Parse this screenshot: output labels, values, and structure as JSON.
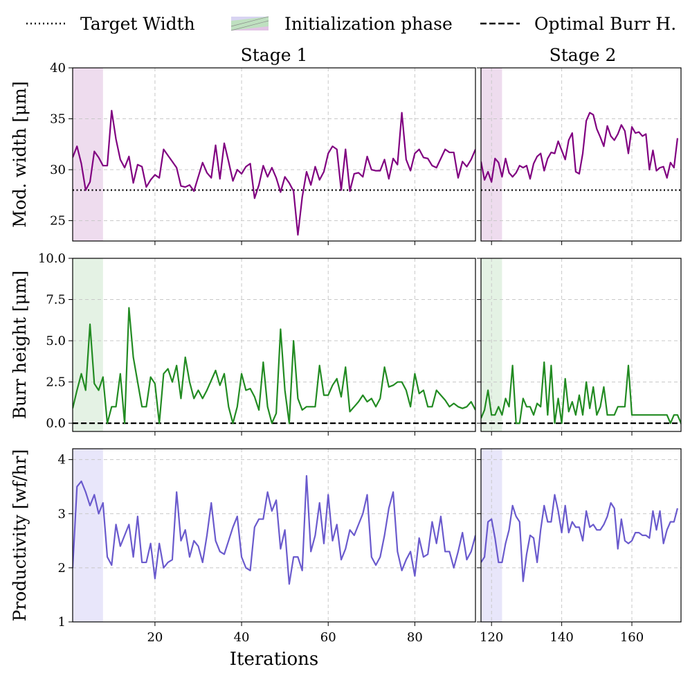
{
  "legend": {
    "target_width": "Target Width",
    "init_phase": "Initialization phase",
    "optimal_burr": "Optimal Burr H."
  },
  "colors": {
    "width": "#800080",
    "burr": "#228b22",
    "productivity": "#6a5acd",
    "init_width": "#eedcee",
    "init_burr": "#e4f2e4",
    "init_prod": "#e8e6fa",
    "grid": "#c8c8c8"
  },
  "chart_data": [
    {
      "type": "line",
      "panel": "width",
      "ylabel": "Mod. width [μm]",
      "ylim": [
        23,
        40
      ],
      "yticks": [
        25,
        30,
        35,
        40
      ],
      "reference_line": {
        "label": "Target Width",
        "y": 28,
        "style": "dotted"
      },
      "stage1": {
        "title": "Stage 1",
        "xlim": [
          1,
          94
        ],
        "xticks": [
          20,
          40,
          60,
          80
        ],
        "init_phase": [
          1,
          8
        ],
        "x_start": 1,
        "values": [
          31.2,
          32.3,
          30.6,
          28.0,
          28.8,
          31.8,
          31.2,
          30.4,
          30.4,
          35.8,
          33.0,
          31.0,
          30.2,
          31.3,
          28.7,
          30.5,
          30.3,
          28.3,
          29.0,
          29.5,
          29.2,
          32.0,
          31.4,
          30.8,
          30.2,
          28.4,
          28.3,
          28.5,
          27.9,
          29.3,
          30.7,
          29.7,
          29.2,
          32.4,
          29.1,
          32.6,
          30.8,
          28.9,
          30.0,
          29.6,
          30.3,
          30.6,
          27.2,
          28.5,
          30.4,
          29.3,
          30.2,
          29.2,
          27.8,
          29.3,
          28.7,
          27.9,
          23.6,
          27.3,
          29.8,
          28.5,
          30.3,
          29.0,
          29.8,
          31.6,
          32.3,
          32.0,
          28.0,
          32.0,
          27.9,
          29.6,
          29.7,
          29.3,
          31.3,
          30.0,
          29.9,
          29.9,
          31.0,
          29.1,
          31.1,
          30.5,
          35.6,
          31.0,
          29.9,
          31.6,
          32.0,
          31.2,
          31.1,
          30.4,
          30.2,
          31.1,
          32.0,
          31.7,
          31.7,
          29.2,
          30.8,
          30.3,
          31.0,
          32.0
        ]
      },
      "stage2": {
        "title": "Stage 2",
        "xlim": [
          117,
          174
        ],
        "xticks": [
          120,
          140,
          160
        ],
        "init_phase": [
          117,
          123
        ],
        "x_start": 117,
        "values": [
          30.8,
          29.0,
          29.8,
          28.8,
          31.1,
          30.7,
          29.3,
          31.1,
          29.7,
          29.3,
          29.7,
          30.4,
          30.2,
          30.4,
          29.1,
          30.6,
          31.3,
          31.6,
          29.9,
          31.1,
          31.7,
          31.6,
          32.8,
          31.9,
          31.0,
          32.9,
          33.6,
          29.8,
          29.6,
          31.6,
          34.8,
          35.6,
          35.4,
          34.0,
          33.2,
          32.3,
          34.3,
          33.3,
          32.9,
          33.5,
          34.4,
          33.8,
          31.6,
          34.2,
          33.6,
          33.7,
          33.3,
          33.5,
          30.0,
          31.9,
          29.9,
          30.2,
          30.3,
          29.2,
          30.7,
          30.2,
          33.1
        ]
      }
    },
    {
      "type": "line",
      "panel": "burr",
      "ylabel": "Burr height [μm]",
      "ylim": [
        -0.5,
        10
      ],
      "yticks": [
        0.0,
        2.5,
        5.0,
        7.5,
        10.0
      ],
      "ytick_labels": [
        "0.0",
        "2.5",
        "5.0",
        "7.5",
        "10.0"
      ],
      "reference_line": {
        "label": "Optimal Burr H.",
        "y": 0,
        "style": "dashed"
      },
      "stage1": {
        "title": "",
        "xlim": [
          1,
          94
        ],
        "xticks": [
          20,
          40,
          60,
          80
        ],
        "init_phase": [
          1,
          8
        ],
        "x_start": 1,
        "values": [
          0.9,
          2.0,
          3.0,
          2.0,
          6.0,
          2.4,
          2.0,
          2.8,
          0.0,
          1.0,
          1.0,
          3.0,
          0.0,
          7.0,
          4.0,
          2.5,
          1.0,
          1.0,
          2.8,
          2.4,
          0.0,
          3.0,
          3.3,
          2.5,
          3.5,
          1.5,
          4.0,
          2.5,
          1.5,
          2.0,
          1.5,
          2.0,
          2.6,
          3.2,
          2.3,
          3.0,
          1.0,
          0.0,
          1.0,
          3.0,
          2.0,
          2.1,
          1.6,
          0.8,
          3.7,
          1.0,
          0.0,
          0.6,
          5.7,
          2.0,
          0.0,
          5.0,
          1.5,
          0.8,
          1.0,
          1.0,
          1.0,
          3.5,
          1.7,
          1.7,
          2.3,
          2.7,
          1.6,
          3.4,
          0.7,
          1.0,
          1.3,
          1.7,
          1.3,
          1.5,
          1.0,
          1.5,
          3.4,
          2.2,
          2.3,
          2.5,
          2.5,
          2.0,
          1.0,
          3.0,
          1.8,
          2.0,
          1.0,
          1.0,
          2.0,
          1.7,
          1.4,
          1.0,
          1.2,
          1.0,
          0.9,
          1.0,
          1.3,
          0.8
        ]
      },
      "stage2": {
        "title": "",
        "xlim": [
          117,
          174
        ],
        "xticks": [
          120,
          140,
          160
        ],
        "init_phase": [
          117,
          123
        ],
        "x_start": 117,
        "values": [
          0.3,
          0.8,
          2.0,
          0.5,
          0.5,
          1.0,
          0.5,
          1.5,
          1.0,
          3.5,
          0.0,
          0.0,
          1.5,
          1.0,
          1.0,
          0.5,
          1.2,
          1.0,
          3.7,
          0.5,
          3.5,
          0.0,
          1.5,
          0.0,
          2.7,
          0.7,
          1.3,
          0.5,
          1.7,
          0.5,
          2.5,
          0.9,
          2.2,
          0.5,
          1.0,
          2.2,
          0.5,
          0.5,
          0.5,
          1.0,
          1.0,
          1.0,
          3.5,
          0.5,
          0.5,
          0.5,
          0.5,
          0.5,
          0.5,
          0.5,
          0.5,
          0.5,
          0.5,
          0.5,
          0.0,
          0.5,
          0.5,
          0.0
        ]
      }
    },
    {
      "type": "line",
      "panel": "productivity",
      "ylabel": "Productivity [wf/hr]",
      "ylim": [
        1,
        4.2
      ],
      "yticks": [
        1,
        2,
        3,
        4
      ],
      "stage1": {
        "title": "",
        "xlabel": "Iterations",
        "xlim": [
          1,
          94
        ],
        "xticks": [
          20,
          40,
          60,
          80
        ],
        "init_phase": [
          1,
          8
        ],
        "x_start": 1,
        "values": [
          2.0,
          3.5,
          3.6,
          3.4,
          3.15,
          3.35,
          3.0,
          3.2,
          2.2,
          2.05,
          2.8,
          2.4,
          2.6,
          2.8,
          2.2,
          2.95,
          2.1,
          2.1,
          2.45,
          1.8,
          2.45,
          2.0,
          2.1,
          2.15,
          3.4,
          2.5,
          2.7,
          2.2,
          2.5,
          2.4,
          2.1,
          2.6,
          3.2,
          2.5,
          2.3,
          2.25,
          2.5,
          2.75,
          2.95,
          2.2,
          2.0,
          1.95,
          2.75,
          2.9,
          2.9,
          3.4,
          3.05,
          3.25,
          2.35,
          2.7,
          1.7,
          2.2,
          2.2,
          1.95,
          3.7,
          2.3,
          2.6,
          3.2,
          2.45,
          3.35,
          2.5,
          2.8,
          2.15,
          2.35,
          2.7,
          2.6,
          2.8,
          3.0,
          3.35,
          2.2,
          2.05,
          2.2,
          2.6,
          3.1,
          3.4,
          2.3,
          1.95,
          2.15,
          2.3,
          1.85,
          2.55,
          2.2,
          2.25,
          2.85,
          2.45,
          2.95,
          2.3,
          2.3,
          2.0,
          2.3,
          2.65,
          2.15,
          2.3,
          2.6
        ]
      },
      "stage2": {
        "title": "",
        "xlim": [
          117,
          174
        ],
        "xticks": [
          120,
          140,
          160
        ],
        "init_phase": [
          117,
          123
        ],
        "x_start": 117,
        "values": [
          2.1,
          2.2,
          2.85,
          2.9,
          2.55,
          2.1,
          2.1,
          2.45,
          2.7,
          3.15,
          2.95,
          2.85,
          1.75,
          2.25,
          2.6,
          2.55,
          2.1,
          2.7,
          3.15,
          2.85,
          2.85,
          3.35,
          3.05,
          2.65,
          3.15,
          2.65,
          2.85,
          2.75,
          2.75,
          2.5,
          3.05,
          2.75,
          2.8,
          2.7,
          2.7,
          2.8,
          2.95,
          3.2,
          3.1,
          2.35,
          2.9,
          2.5,
          2.45,
          2.5,
          2.65,
          2.65,
          2.6,
          2.6,
          2.55,
          3.05,
          2.7,
          3.05,
          2.45,
          2.7,
          2.85,
          2.85,
          3.1
        ]
      }
    }
  ]
}
